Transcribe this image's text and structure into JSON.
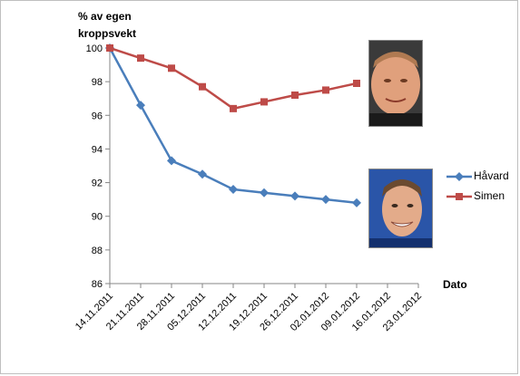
{
  "chart_data": {
    "type": "line",
    "ylabel": "% av egen kroppsvekt",
    "xlabel": "Dato",
    "categories": [
      "14.11.2011",
      "21.11.2011",
      "28.11.2011",
      "05.12.2011",
      "12.12.2011",
      "19.12.2011",
      "26.12.2011",
      "02.01.2012",
      "09.01.2012",
      "16.01.2012",
      "23.01.2012"
    ],
    "ylim": [
      86,
      100
    ],
    "yticks": [
      86,
      88,
      90,
      92,
      94,
      96,
      98,
      100
    ],
    "grid": false,
    "legend_position": "right",
    "series": [
      {
        "name": "Håvard",
        "color": "#4a7ebb",
        "marker": "diamond",
        "values": [
          100,
          96.6,
          93.3,
          92.5,
          91.6,
          91.4,
          91.2,
          91.0,
          90.8,
          null,
          null
        ]
      },
      {
        "name": "Simen",
        "color": "#be4b48",
        "marker": "square",
        "values": [
          100,
          99.4,
          98.8,
          97.7,
          96.4,
          96.8,
          97.2,
          97.5,
          97.9,
          null,
          null
        ]
      }
    ]
  },
  "photos": {
    "simen": "portrait-photo",
    "havard": "portrait-photo"
  }
}
